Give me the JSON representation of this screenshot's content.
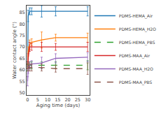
{
  "chart_data": {
    "type": "line",
    "xlabel": "Aging time (days)",
    "ylabel": "Water contact angle (°)",
    "xlim": [
      -0.5,
      31
    ],
    "ylim": [
      49,
      88
    ],
    "xticks": [
      0,
      5,
      10,
      15,
      20,
      25,
      30
    ],
    "yticks": [
      50,
      55,
      60,
      65,
      70,
      75,
      80,
      85
    ],
    "grid": false,
    "legend": "right",
    "x": [
      0,
      0.25,
      1,
      2,
      7,
      14,
      30
    ],
    "series": [
      {
        "name": "PDMS-HEMA_Air",
        "line_style": "solid",
        "values": [
          61.0,
          83.5,
          85.5,
          85.5,
          85.5,
          85.5,
          85.5
        ],
        "errors": [
          1.5,
          2.5,
          1.5,
          1.5,
          2.5,
          2.0,
          2.0
        ]
      },
      {
        "name": "PDMS-HEMA_H2O",
        "line_style": "solid",
        "values": [
          61.0,
          68.0,
          71.0,
          72.0,
          73.0,
          74.0,
          74.0
        ],
        "errors": [
          1.5,
          2.0,
          2.0,
          1.5,
          3.5,
          1.5,
          2.0
        ]
      },
      {
        "name": "PDMS-HEMA_PBS",
        "line_style": "dashed",
        "values": [
          61.0,
          62.0,
          62.0,
          62.0,
          62.0,
          62.0,
          62.0
        ],
        "errors": [
          1.5,
          1.5,
          1.5,
          1.5,
          1.5,
          1.5,
          2.0
        ]
      },
      {
        "name": "PDMS-MAA_Air",
        "line_style": "solid",
        "values": [
          62.0,
          65.0,
          70.0,
          70.0,
          70.0,
          70.0,
          70.0
        ],
        "errors": [
          1.5,
          2.0,
          2.0,
          1.5,
          2.0,
          1.5,
          2.0
        ]
      },
      {
        "name": "PDMS-MAA_H2O",
        "line_style": "solid",
        "values": [
          55.0,
          60.0,
          62.0,
          62.5,
          63.0,
          65.0,
          65.5
        ],
        "errors": [
          2.0,
          1.5,
          1.5,
          1.5,
          2.5,
          2.0,
          2.0
        ]
      },
      {
        "name": "PDMS-MAA_PBS",
        "line_style": "dashed",
        "values": [
          62.0,
          61.0,
          61.0,
          61.0,
          61.0,
          60.5,
          60.5
        ],
        "errors": [
          1.5,
          1.5,
          1.5,
          1.5,
          1.5,
          1.5,
          2.5
        ]
      }
    ]
  }
}
